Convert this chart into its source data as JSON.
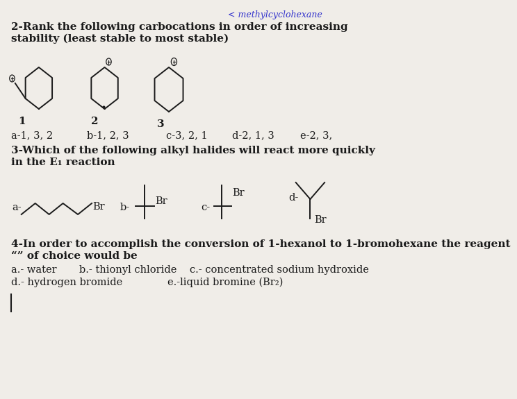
{
  "background_color": "#f0ede8",
  "q2_title_line1": "2-Rank the following carbocations in order of increasing",
  "q2_title_line2": "stability (least stable to most stable)",
  "q2_answers_a": "a-1, 3, 2",
  "q2_answers_b": "b-1, 2, 3",
  "q2_answers_c": "c-3, 2, 1",
  "q2_answers_d": "d-2, 1, 3",
  "q2_answers_e": "e-2, 3,",
  "q3_title_line1": "3-Which of the following alkyl halides will react more quickly",
  "q3_title_line2": "in the E₁ reaction",
  "q4_title": "4-In order to accomplish the conversion of 1-hexanol to 1-bromohexane the reagent",
  "q4_title2": "“” of choice would be",
  "q4_answers_line1": "a.- water       b.- thionyl chloride    c.- concentrated sodium hydroxide",
  "q4_answers_line2": "d.- hydrogen bromide              e.-liquid bromine (Br₂)",
  "top_text": "< methylcyclohexane",
  "font_size_body": 10.5,
  "font_size_title": 11,
  "text_color": "#1a1a1a",
  "link_color": "#3333cc"
}
